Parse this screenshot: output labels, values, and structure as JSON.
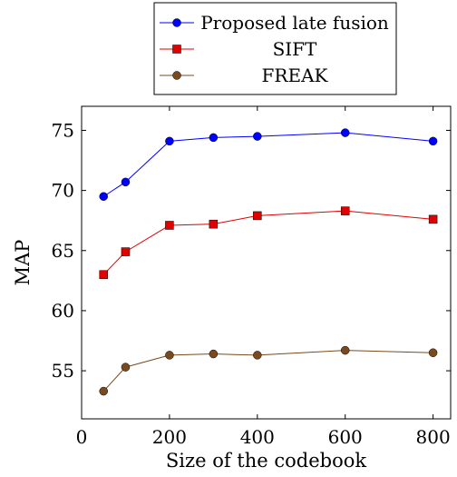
{
  "chart_data": {
    "type": "line",
    "xlabel": "Size of the codebook",
    "ylabel": "MAP",
    "xlim": [
      0,
      840
    ],
    "ylim": [
      51,
      77
    ],
    "xticks": [
      0,
      200,
      400,
      600,
      800
    ],
    "yticks": [
      55,
      60,
      65,
      70,
      75
    ],
    "grid": false,
    "legend_position": "top-center",
    "x": [
      50,
      100,
      200,
      300,
      400,
      600,
      800
    ],
    "series": [
      {
        "name": "Proposed late fusion",
        "color": "#0000ff",
        "marker": "circle",
        "values": [
          69.5,
          70.7,
          74.1,
          74.4,
          74.5,
          74.8,
          74.1
        ]
      },
      {
        "name": "SIFT",
        "color": "#e00000",
        "marker": "square",
        "values": [
          63.0,
          64.9,
          67.1,
          67.2,
          67.9,
          68.3,
          67.6
        ]
      },
      {
        "name": "FREAK",
        "color": "#7a4a1e",
        "marker": "circle",
        "values": [
          53.3,
          55.3,
          56.3,
          56.4,
          56.3,
          56.7,
          56.5
        ]
      }
    ]
  }
}
